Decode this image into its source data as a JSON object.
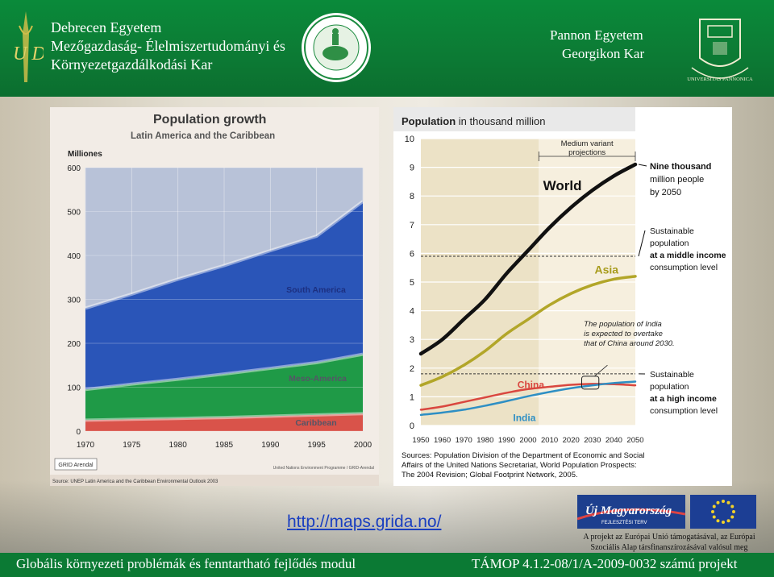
{
  "header": {
    "left_line1": "Debrecen Egyetem",
    "left_line2": "Mezőgazdaság- Élelmiszertudományi és",
    "left_line3": "Környezetgazdálkodási Kar",
    "right_line1": "Pannon Egyetem",
    "right_line2": "Georgikon Kar",
    "udlogo": "U D",
    "seal_right_text": "UNIVERSITAS PANNONICA",
    "brand": "#0b7a34"
  },
  "footer": {
    "left": "Globális környezeti problémák és fenntartható fejlődés modul",
    "right": "TÁMOP 4.1.2-08/1/A-2009-0032 számú projekt"
  },
  "link": "http://maps.grida.no/",
  "funding": {
    "logo_text": "Új Magyarország",
    "logo_sub": "FEJLESZTÉSI TERV",
    "line1": "A projekt az Európai Unió támogatásával, az Európai",
    "line2": "Szociális Alap társfinanszírozásával valósul meg"
  },
  "chart_data": [
    {
      "type": "area",
      "title": "Population growth",
      "subtitle": "Latin America and the Caribbean",
      "ylabel": "Milliones",
      "x": [
        1970,
        1975,
        1980,
        1985,
        1990,
        1995,
        2000
      ],
      "xticks": [
        "1970",
        "1975",
        "1980",
        "1985",
        "1990",
        "1995",
        "2000"
      ],
      "yticks": [
        "0",
        "100",
        "200",
        "300",
        "400",
        "500",
        "600"
      ],
      "ylim": [
        0,
        600
      ],
      "stacked": true,
      "series": [
        {
          "name": "Caribbean",
          "values": [
            25,
            27,
            29,
            31,
            34,
            37,
            40
          ],
          "color": "#d9534a"
        },
        {
          "name": "Meso-America",
          "values": [
            70,
            80,
            89,
            99,
            109,
            119,
            135
          ],
          "color": "#1f9a47"
        },
        {
          "name": "South America",
          "values": [
            185,
            205,
            228,
            247,
            268,
            288,
            348
          ],
          "color": "#2a55b8"
        }
      ],
      "source": "Source: UNEP Latin America and the Caribbean Environmental Outlook 2003",
      "credit": "United Nations Environment Programme / GRID-Arendal",
      "logo_text": "GRID Arendal"
    },
    {
      "type": "line",
      "title_bold": "Population",
      "title_rest": "in thousand million",
      "x": [
        1950,
        1960,
        1970,
        1980,
        1990,
        2000,
        2010,
        2020,
        2030,
        2040,
        2050
      ],
      "xticks": [
        "1950",
        "1960",
        "1970",
        "1980",
        "1990",
        "2000",
        "2010",
        "2020",
        "2030",
        "2040",
        "2050"
      ],
      "yticks": [
        "0",
        "1",
        "2",
        "3",
        "4",
        "5",
        "6",
        "7",
        "8",
        "9",
        "10"
      ],
      "ylim": [
        0,
        10
      ],
      "series": [
        {
          "name": "World",
          "values": [
            2.5,
            3.0,
            3.7,
            4.4,
            5.3,
            6.1,
            6.9,
            7.6,
            8.2,
            8.7,
            9.1
          ],
          "color": "#111111"
        },
        {
          "name": "Asia",
          "values": [
            1.4,
            1.7,
            2.1,
            2.6,
            3.2,
            3.7,
            4.2,
            4.6,
            4.9,
            5.1,
            5.2
          ],
          "color": "#b2a629"
        },
        {
          "name": "China",
          "values": [
            0.55,
            0.66,
            0.82,
            0.98,
            1.14,
            1.27,
            1.35,
            1.42,
            1.45,
            1.44,
            1.4
          ],
          "color": "#d9473f"
        },
        {
          "name": "India",
          "values": [
            0.37,
            0.45,
            0.55,
            0.69,
            0.85,
            1.02,
            1.17,
            1.3,
            1.4,
            1.48,
            1.53
          ],
          "color": "#2e8fc4"
        }
      ],
      "projection_label": "Medium variant projections",
      "projection_start": 2005,
      "reference_lines": [
        {
          "y": 5.9,
          "label_lines": [
            "Sustainable",
            "population",
            "at a middle income",
            "consumption level"
          ],
          "bold_line": 2
        },
        {
          "y": 1.8,
          "label_lines": [
            "Sustainable",
            "population",
            "at a high income",
            "consumption level"
          ],
          "bold_line": 2
        }
      ],
      "annotation_top": [
        "Nine thousand",
        "million people",
        "by 2050"
      ],
      "annotation_india": [
        "The population of India",
        "is expected to overtake",
        "that of China around 2030."
      ],
      "source": [
        "Sources: Population Division of the Department of Economic and Social",
        "Affairs of the United Nations Secretariat, World Population Prospects:",
        "The 2004 Revision; Global Footprint Network, 2005."
      ]
    }
  ]
}
